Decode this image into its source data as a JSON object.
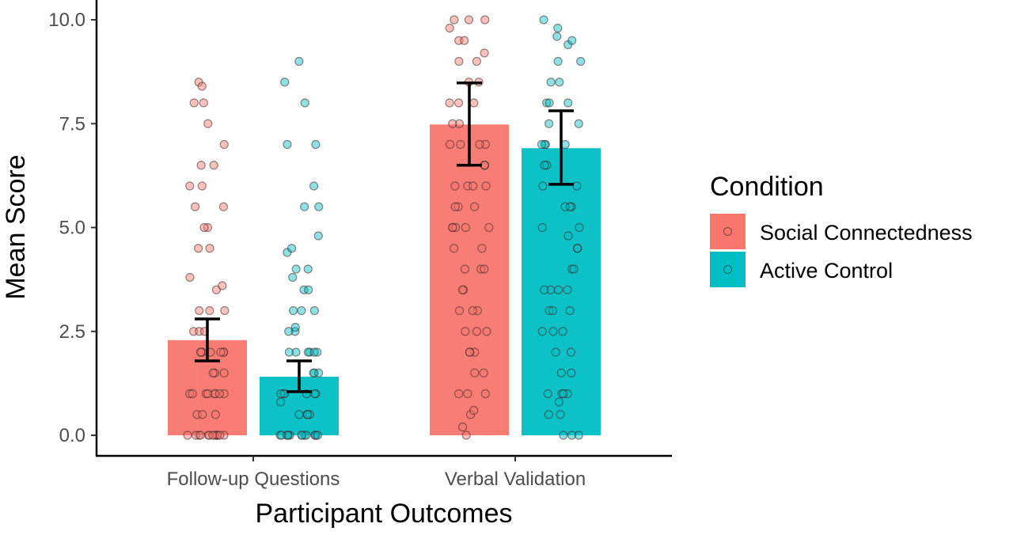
{
  "chart_data": {
    "type": "bar",
    "xlabel": "Participant Outcomes",
    "ylabel": "Mean Score",
    "ylim": [
      0,
      10
    ],
    "yticks": [
      "0.0",
      "2.5",
      "5.0",
      "7.5",
      "10.0"
    ],
    "categories": [
      "Follow-up Questions",
      "Verbal Validation"
    ],
    "legend": {
      "title": "Condition",
      "position": "right"
    },
    "grid": false,
    "series": [
      {
        "name": "Social Connectedness",
        "color": "#F8766D",
        "values": [
          2.29,
          7.48
        ],
        "error_low": [
          1.79,
          6.5
        ],
        "error_high": [
          2.8,
          8.48
        ],
        "points": [
          [
            0,
            0,
            0,
            0,
            0,
            0,
            0,
            0,
            0,
            0,
            0,
            0,
            0,
            0.5,
            0.5,
            0.5,
            1,
            1,
            1,
            1,
            1,
            1,
            1,
            1,
            1.5,
            1.5,
            1.5,
            2,
            2,
            2,
            2,
            2,
            2,
            2,
            2.5,
            2.5,
            2.5,
            3,
            3,
            3,
            3.5,
            3.6,
            3.8,
            4.5,
            4.5,
            5,
            5,
            5.5,
            5.5,
            6,
            6,
            6.5,
            6.5,
            7,
            7.5,
            8,
            8,
            8.5,
            8.4
          ],
          [
            0,
            0.2,
            0.5,
            0.6,
            1,
            1,
            1,
            1.5,
            1.5,
            2,
            2,
            2,
            2.5,
            2.5,
            2.5,
            3,
            3,
            3,
            3.5,
            3.5,
            4,
            4,
            4,
            4.5,
            4.5,
            5,
            5,
            5,
            5,
            5,
            5.5,
            5.5,
            5.5,
            6,
            6,
            6,
            6,
            6.5,
            6.5,
            6.5,
            7,
            7,
            7,
            7,
            7.5,
            7.5,
            8,
            8,
            8,
            8.5,
            8.5,
            9,
            9,
            9.2,
            9.5,
            9.5,
            10,
            10,
            10,
            9.8
          ]
        ]
      },
      {
        "name": "Active Control",
        "color": "#00BFC4",
        "values": [
          1.41,
          6.91
        ],
        "error_low": [
          1.05,
          6.04
        ],
        "error_high": [
          1.79,
          7.81
        ],
        "points": [
          [
            0,
            0,
            0,
            0,
            0,
            0,
            0,
            0,
            0,
            0,
            0,
            0,
            0,
            0,
            0.5,
            0.5,
            0.5,
            0.5,
            0.8,
            1,
            1,
            1,
            1,
            1,
            1,
            1.5,
            1.5,
            1.5,
            2,
            2,
            2,
            2,
            2,
            2,
            2.5,
            2.5,
            2.6,
            3,
            3,
            3,
            3.5,
            3.5,
            3.8,
            4,
            4,
            4.4,
            4.5,
            4.8,
            5.5,
            5.5,
            6,
            7,
            7,
            8,
            8.5,
            9
          ],
          [
            0,
            0,
            0,
            0.5,
            0.5,
            0.8,
            1,
            1,
            1,
            1,
            1.5,
            1.5,
            2,
            2,
            2.5,
            2.5,
            2.5,
            3,
            3,
            3,
            3.5,
            3.5,
            3.5,
            3.5,
            4,
            4,
            4.5,
            4.5,
            4.8,
            5,
            5,
            5.5,
            5.5,
            5.5,
            6,
            6,
            6.5,
            6.5,
            7,
            7,
            7,
            7,
            7.5,
            7.5,
            8,
            8,
            8,
            8.5,
            8.5,
            9,
            9,
            9.4,
            9.5,
            9.6,
            9.8,
            10
          ]
        ]
      }
    ]
  }
}
